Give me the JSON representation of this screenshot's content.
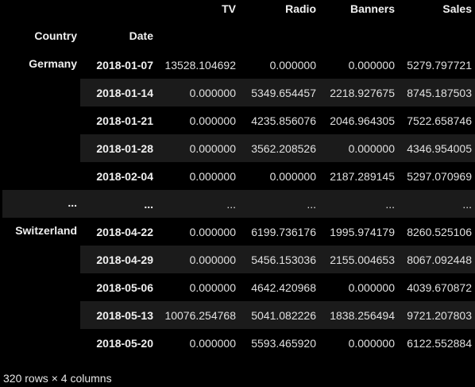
{
  "columns": [
    "TV",
    "Radio",
    "Banners",
    "Sales"
  ],
  "index_names": [
    "Country",
    "Date"
  ],
  "groups": [
    {
      "country": "Germany",
      "rows": [
        {
          "date": "2018-01-07",
          "values": [
            "13528.104692",
            "0.000000",
            "0.000000",
            "5279.797721"
          ]
        },
        {
          "date": "2018-01-14",
          "values": [
            "0.000000",
            "5349.654457",
            "2218.927675",
            "8745.187503"
          ]
        },
        {
          "date": "2018-01-21",
          "values": [
            "0.000000",
            "4235.856076",
            "2046.964305",
            "7522.658746"
          ]
        },
        {
          "date": "2018-01-28",
          "values": [
            "0.000000",
            "3562.208526",
            "0.000000",
            "4346.954005"
          ]
        },
        {
          "date": "2018-02-04",
          "values": [
            "0.000000",
            "0.000000",
            "2187.289145",
            "5297.070969"
          ]
        }
      ]
    },
    {
      "country": "Switzerland",
      "rows": [
        {
          "date": "2018-04-22",
          "values": [
            "0.000000",
            "6199.736176",
            "1995.974179",
            "8260.525106"
          ]
        },
        {
          "date": "2018-04-29",
          "values": [
            "0.000000",
            "5456.153036",
            "2155.004653",
            "8067.092448"
          ]
        },
        {
          "date": "2018-05-06",
          "values": [
            "0.000000",
            "4642.420968",
            "0.000000",
            "4039.670872"
          ]
        },
        {
          "date": "2018-05-13",
          "values": [
            "10076.254768",
            "5041.082226",
            "1838.256494",
            "9721.207803"
          ]
        },
        {
          "date": "2018-05-20",
          "values": [
            "0.000000",
            "5593.465920",
            "0.000000",
            "6122.552884"
          ]
        }
      ]
    }
  ],
  "ellipsis": "...",
  "footer": "320 rows × 4 columns",
  "colors": {
    "background": "#000000",
    "stripe": "#1b1b1b",
    "text": "#e6e6e6"
  }
}
